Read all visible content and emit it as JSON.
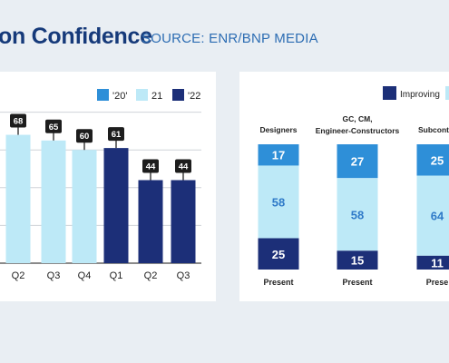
{
  "header": {
    "title": "on Confidence",
    "source": "SOURCE: ENR/BNP MEDIA"
  },
  "colors": {
    "y2020": "#2e8fd8",
    "y2021": "#bde9f7",
    "y2022": "#1c2f78",
    "label_dark": "#222222",
    "value_text": "#2f7ac8",
    "background": "#e9eef3"
  },
  "chart_data": [
    {
      "type": "bar",
      "legend": [
        "'20'",
        "21",
        "'22"
      ],
      "legend_placement": "top-right",
      "categories": [
        "Q2",
        "Q3",
        "Q4",
        "Q1",
        "Q2",
        "Q3"
      ],
      "values": [
        68,
        65,
        60,
        61,
        44,
        44
      ],
      "value_labels": [
        "68",
        "65",
        "60",
        "61",
        "44",
        "44"
      ],
      "series_index": [
        1,
        1,
        1,
        2,
        2,
        2
      ],
      "ylim": [
        0,
        100
      ],
      "grid": true
    },
    {
      "type": "bar",
      "stacked": true,
      "legend": [
        "Improving"
      ],
      "legend_placement": "top-right",
      "categories": [
        "Designers",
        "GC, CM, Engineer-Constructors",
        "Subcontra"
      ],
      "category_lines": [
        [
          "Designers"
        ],
        [
          "GC, CM,",
          "Engineer-Constructors"
        ],
        [
          "Subcontra"
        ]
      ],
      "xlabels": [
        "Present",
        "Present",
        "Prese"
      ],
      "series": [
        {
          "values": [
            17,
            27,
            25
          ],
          "labels": [
            "17",
            "27",
            "25"
          ]
        },
        {
          "values": [
            58,
            58,
            64
          ],
          "labels": [
            "58",
            "58",
            "64"
          ]
        },
        {
          "values": [
            25,
            15,
            11
          ],
          "labels": [
            "25",
            "15",
            "11"
          ]
        }
      ]
    }
  ]
}
